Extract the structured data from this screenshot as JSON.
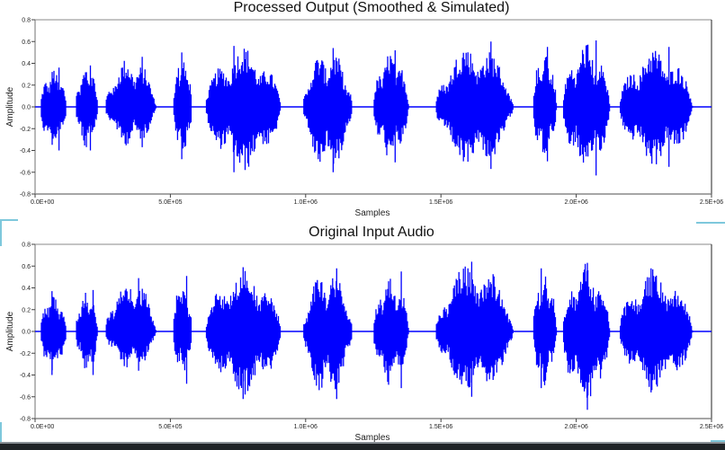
{
  "chart_data": [
    {
      "type": "line",
      "title": "Processed Output (Smoothed & Simulated)",
      "xlabel": "Samples",
      "ylabel": "Amplitude",
      "xlim": [
        0,
        2500000
      ],
      "ylim": [
        -0.8,
        0.8
      ],
      "xticks": [
        "0.0E+00",
        "5.0E+05",
        "1.0E+06",
        "1.5E+06",
        "2.0E+06",
        "2.5E+06"
      ],
      "yticks": [
        "0.8",
        "0.6",
        "0.4",
        "0.2",
        "0.0",
        "-0.2",
        "-0.4",
        "-0.6",
        "-0.8"
      ],
      "color": "#0000ff",
      "grid": false,
      "segments": [
        {
          "start": 20000,
          "end": 130000,
          "peak_pos": 0.36,
          "peak_neg": -0.4
        },
        {
          "start": 150000,
          "end": 245000,
          "peak_pos": 0.38,
          "peak_neg": -0.4
        },
        {
          "start": 260000,
          "end": 475000,
          "peak_pos": 0.46,
          "peak_neg": -0.37
        },
        {
          "start": 510000,
          "end": 590000,
          "peak_pos": 0.5,
          "peak_neg": -0.48
        },
        {
          "start": 630000,
          "end": 950000,
          "peak_pos": 0.56,
          "peak_neg": -0.6
        },
        {
          "start": 990000,
          "end": 1200000,
          "peak_pos": 0.54,
          "peak_neg": -0.6
        },
        {
          "start": 1250000,
          "end": 1400000,
          "peak_pos": 0.52,
          "peak_neg": -0.51
        },
        {
          "start": 1480000,
          "end": 1810000,
          "peak_pos": 0.6,
          "peak_neg": -0.57
        },
        {
          "start": 1840000,
          "end": 1940000,
          "peak_pos": 0.55,
          "peak_neg": -0.5
        },
        {
          "start": 1950000,
          "end": 2150000,
          "peak_pos": 0.61,
          "peak_neg": -0.63
        },
        {
          "start": 2160000,
          "end": 2470000,
          "peak_pos": 0.55,
          "peak_neg": -0.55
        }
      ]
    },
    {
      "type": "line",
      "title": "Original Input Audio",
      "xlabel": "Samples",
      "ylabel": "Amplitude",
      "xlim": [
        0,
        2500000
      ],
      "ylim": [
        -0.8,
        0.8
      ],
      "xticks": [
        "0.0E+00",
        "5.0E+05",
        "1.0E+06",
        "1.5E+06",
        "2.0E+06",
        "2.5E+06"
      ],
      "yticks": [
        "0.8",
        "0.6",
        "0.4",
        "0.2",
        "0.0",
        "-0.2",
        "-0.4",
        "-0.6",
        "-0.8"
      ],
      "color": "#0000ff",
      "grid": false,
      "segments": [
        {
          "start": 20000,
          "end": 130000,
          "peak_pos": 0.37,
          "peak_neg": -0.4
        },
        {
          "start": 150000,
          "end": 245000,
          "peak_pos": 0.38,
          "peak_neg": -0.4
        },
        {
          "start": 260000,
          "end": 475000,
          "peak_pos": 0.49,
          "peak_neg": -0.36
        },
        {
          "start": 510000,
          "end": 590000,
          "peak_pos": 0.51,
          "peak_neg": -0.48
        },
        {
          "start": 630000,
          "end": 950000,
          "peak_pos": 0.59,
          "peak_neg": -0.62
        },
        {
          "start": 990000,
          "end": 1200000,
          "peak_pos": 0.58,
          "peak_neg": -0.62
        },
        {
          "start": 1250000,
          "end": 1400000,
          "peak_pos": 0.55,
          "peak_neg": -0.52
        },
        {
          "start": 1480000,
          "end": 1810000,
          "peak_pos": 0.64,
          "peak_neg": -0.6
        },
        {
          "start": 1840000,
          "end": 1940000,
          "peak_pos": 0.58,
          "peak_neg": -0.52
        },
        {
          "start": 1950000,
          "end": 2150000,
          "peak_pos": 0.63,
          "peak_neg": -0.72
        },
        {
          "start": 2160000,
          "end": 2470000,
          "peak_pos": 0.58,
          "peak_neg": -0.56
        }
      ]
    }
  ]
}
